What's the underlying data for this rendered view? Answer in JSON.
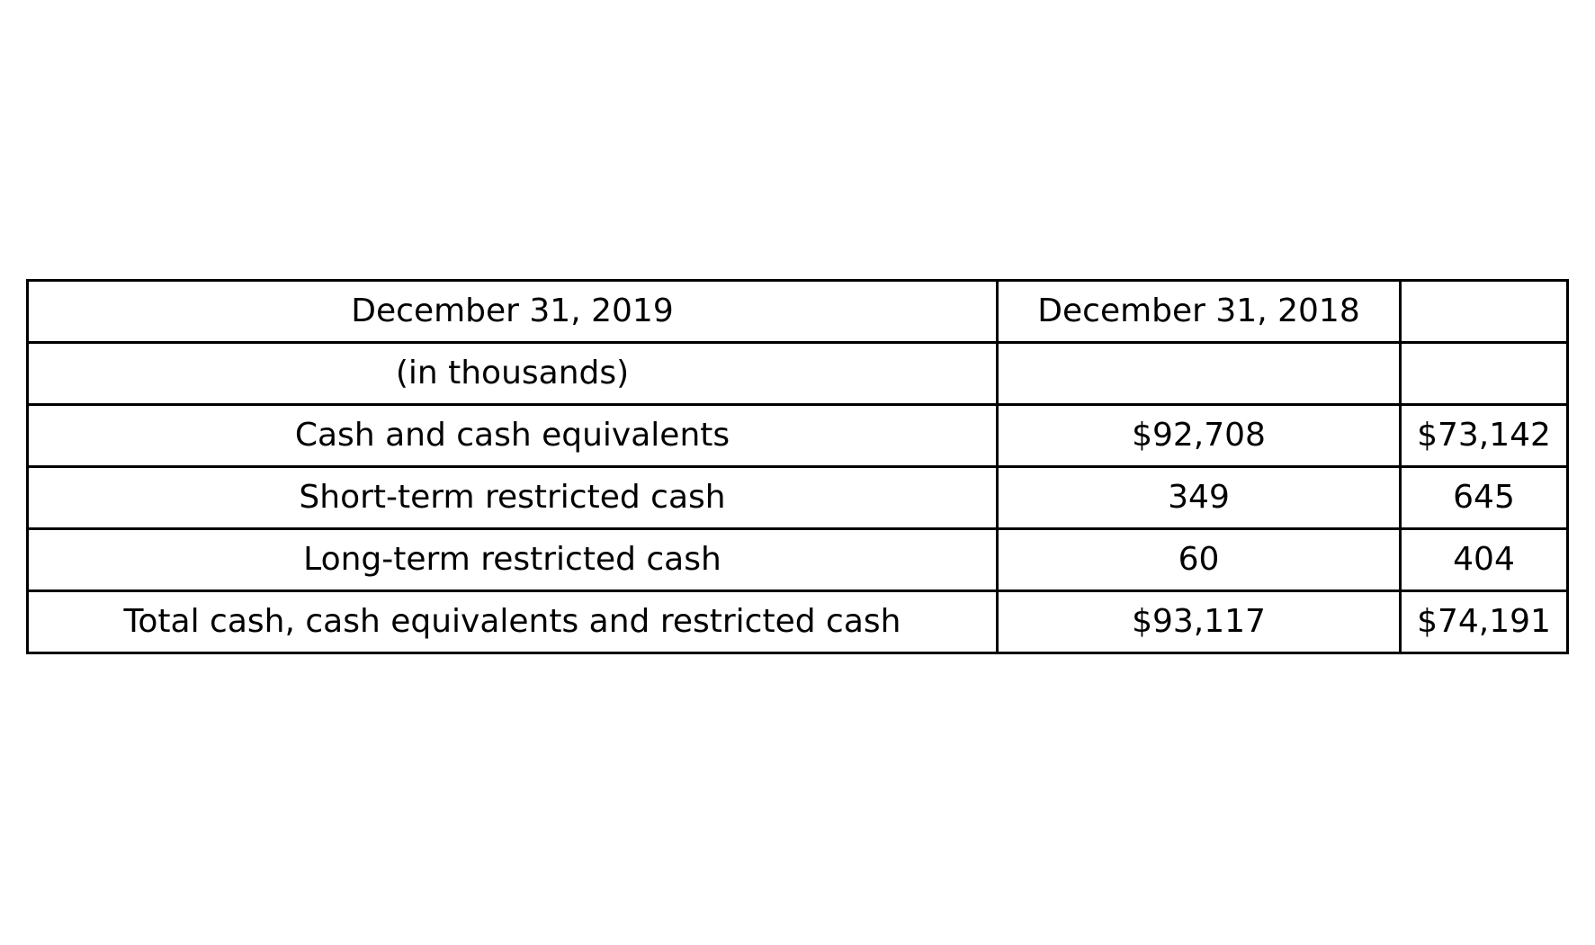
{
  "table": {
    "header_rows": [
      [
        "December 31, 2019",
        "December 31, 2018",
        ""
      ],
      [
        "(in thousands)",
        "",
        ""
      ]
    ],
    "rows": [
      [
        "Cash and cash equivalents",
        "$92,708",
        "$73,142"
      ],
      [
        "Short-term restricted cash",
        "349",
        "645"
      ],
      [
        "Long-term restricted cash",
        "60",
        "404"
      ],
      [
        "Total cash, cash equivalents and restricted cash",
        "$93,117",
        "$74,191"
      ]
    ]
  }
}
